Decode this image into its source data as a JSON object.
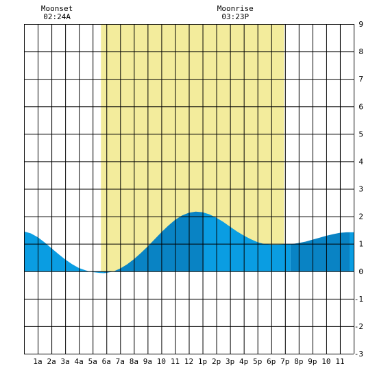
{
  "chart_data": {
    "type": "area",
    "title": "",
    "xlabel": "",
    "ylabel": "",
    "xlim": [
      0,
      24
    ],
    "ylim": [
      -3,
      9
    ],
    "grid": true,
    "x_tick_labels": [
      "1a",
      "2a",
      "3a",
      "4a",
      "5a",
      "6a",
      "7a",
      "8a",
      "9a",
      "10",
      "11",
      "12",
      "1p",
      "2p",
      "3p",
      "4p",
      "5p",
      "6p",
      "7p",
      "8p",
      "9p",
      "10",
      "11"
    ],
    "y_tick_labels": [
      "-3",
      "-2",
      "-1",
      "0",
      "1",
      "2",
      "3",
      "4",
      "5",
      "6",
      "7",
      "8",
      "9"
    ],
    "daylight": {
      "start_hour": 5.6,
      "end_hour": 18.93
    },
    "annotations": [
      {
        "label": "Moonset",
        "time": "02:24A",
        "hour": 2.4
      },
      {
        "label": "Moonrise",
        "time": "03:23P",
        "hour": 15.38
      }
    ],
    "series": [
      {
        "x": [
          0,
          0.5,
          1,
          1.5,
          2,
          2.5,
          3,
          3.5,
          4,
          4.5,
          5,
          5.5,
          5.8,
          6,
          6.5,
          7,
          7.5,
          8,
          8.5,
          9,
          9.5,
          10,
          10.5,
          11,
          11.5,
          12,
          12.5,
          13,
          13.5,
          14,
          14.5,
          15,
          15.5,
          16,
          16.5,
          17,
          17.5,
          18,
          18.5,
          19,
          19.5,
          20,
          20.5,
          21,
          21.5,
          22,
          22.5,
          23,
          23.5,
          24
        ],
        "y": [
          1.45,
          1.38,
          1.24,
          1.05,
          0.84,
          0.63,
          0.43,
          0.26,
          0.12,
          0.03,
          -0.03,
          -0.06,
          -0.07,
          -0.06,
          -0.01,
          0.1,
          0.25,
          0.44,
          0.66,
          0.9,
          1.16,
          1.42,
          1.66,
          1.87,
          2.03,
          2.13,
          2.17,
          2.15,
          2.07,
          1.95,
          1.8,
          1.62,
          1.45,
          1.3,
          1.17,
          1.06,
          0.99,
          0.97,
          0.97,
          0.98,
          0.99,
          1.03,
          1.08,
          1.15,
          1.22,
          1.29,
          1.35,
          1.4,
          1.42,
          1.42
        ]
      }
    ],
    "shading_segments": [
      {
        "from": 0,
        "to": 5.8,
        "tone": "light"
      },
      {
        "from": 5.8,
        "to": 13.1,
        "tone": "dark"
      },
      {
        "from": 13.1,
        "to": 19.4,
        "tone": "light"
      },
      {
        "from": 19.4,
        "to": 23.7,
        "tone": "dark"
      },
      {
        "from": 23.7,
        "to": 24,
        "tone": "light"
      }
    ],
    "colors": {
      "daylight": "#f3ec9c",
      "water_light": "#0a9de2",
      "water_dark": "#0983c4",
      "grid": "#000000",
      "background": "#ffffff"
    }
  }
}
